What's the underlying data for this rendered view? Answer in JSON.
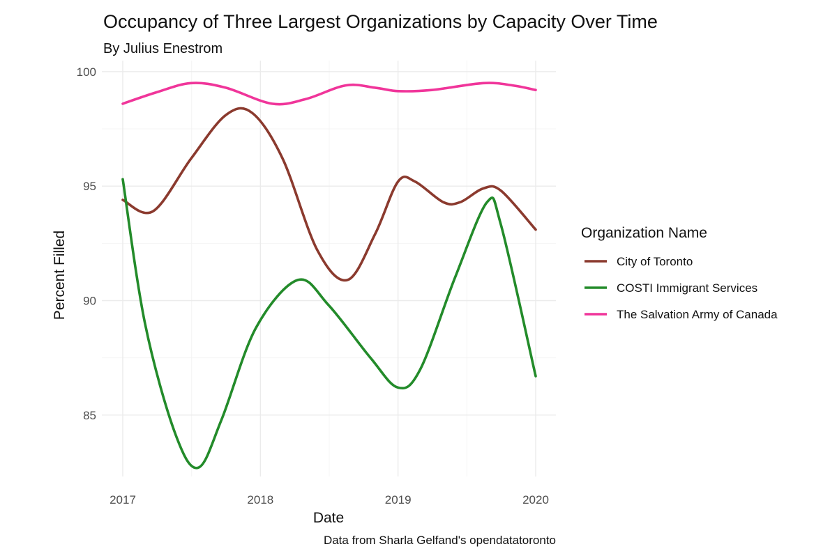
{
  "chart_data": {
    "type": "line",
    "title": "Occupancy of Three Largest Organizations by Capacity Over Time",
    "subtitle": "By Julius Enestrom",
    "xlabel": "Date",
    "ylabel": "Percent Filled",
    "caption": "Data from Sharla Gelfand's opendatatoronto",
    "xlim": [
      "2017-01-01",
      "2020-01-01"
    ],
    "ylim": [
      82.5,
      100.3
    ],
    "x_ticks": [
      "2017",
      "2018",
      "2019",
      "2020"
    ],
    "y_ticks": [
      "85",
      "90",
      "95",
      "100"
    ],
    "grid": true,
    "legend": {
      "title": "Organization Name",
      "position": "right"
    },
    "series": [
      {
        "name": "City of Toronto",
        "color": "#8b3a2e",
        "points": [
          [
            "2017-01-01",
            94.4
          ],
          [
            "2017-03-22",
            93.9
          ],
          [
            "2017-07-01",
            96.2
          ],
          [
            "2017-10-01",
            98.1
          ],
          [
            "2017-12-10",
            98.2
          ],
          [
            "2018-03-01",
            96.2
          ],
          [
            "2018-06-01",
            92.2
          ],
          [
            "2018-08-20",
            90.9
          ],
          [
            "2018-11-01",
            92.9
          ],
          [
            "2019-01-01",
            95.2
          ],
          [
            "2019-02-15",
            95.2
          ],
          [
            "2019-05-01",
            94.3
          ],
          [
            "2019-06-15",
            94.3
          ],
          [
            "2019-08-15",
            94.9
          ],
          [
            "2019-10-01",
            94.8
          ],
          [
            "2020-01-01",
            93.1
          ]
        ]
      },
      {
        "name": "COSTI Immigrant Services",
        "color": "#238b2a",
        "points": [
          [
            "2017-01-01",
            95.3
          ],
          [
            "2017-03-01",
            89.0
          ],
          [
            "2017-05-20",
            84.2
          ],
          [
            "2017-07-20",
            82.7
          ],
          [
            "2017-09-20",
            84.8
          ],
          [
            "2017-12-20",
            88.8
          ],
          [
            "2018-04-10",
            90.9
          ],
          [
            "2018-07-01",
            89.8
          ],
          [
            "2018-10-20",
            87.5
          ],
          [
            "2019-01-01",
            86.2
          ],
          [
            "2019-03-01",
            87.0
          ],
          [
            "2019-06-01",
            91.0
          ],
          [
            "2019-08-25",
            94.3
          ],
          [
            "2019-10-01",
            93.3
          ],
          [
            "2020-01-01",
            86.7
          ]
        ]
      },
      {
        "name": "The Salvation Army of Canada",
        "color": "#f0359a",
        "points": [
          [
            "2017-01-01",
            98.6
          ],
          [
            "2017-04-01",
            99.1
          ],
          [
            "2017-07-01",
            99.5
          ],
          [
            "2017-10-01",
            99.3
          ],
          [
            "2018-02-01",
            98.6
          ],
          [
            "2018-05-01",
            98.8
          ],
          [
            "2018-08-15",
            99.4
          ],
          [
            "2018-11-01",
            99.3
          ],
          [
            "2019-01-01",
            99.15
          ],
          [
            "2019-04-01",
            99.2
          ],
          [
            "2019-08-15",
            99.5
          ],
          [
            "2019-11-01",
            99.4
          ],
          [
            "2020-01-01",
            99.2
          ]
        ]
      }
    ]
  }
}
